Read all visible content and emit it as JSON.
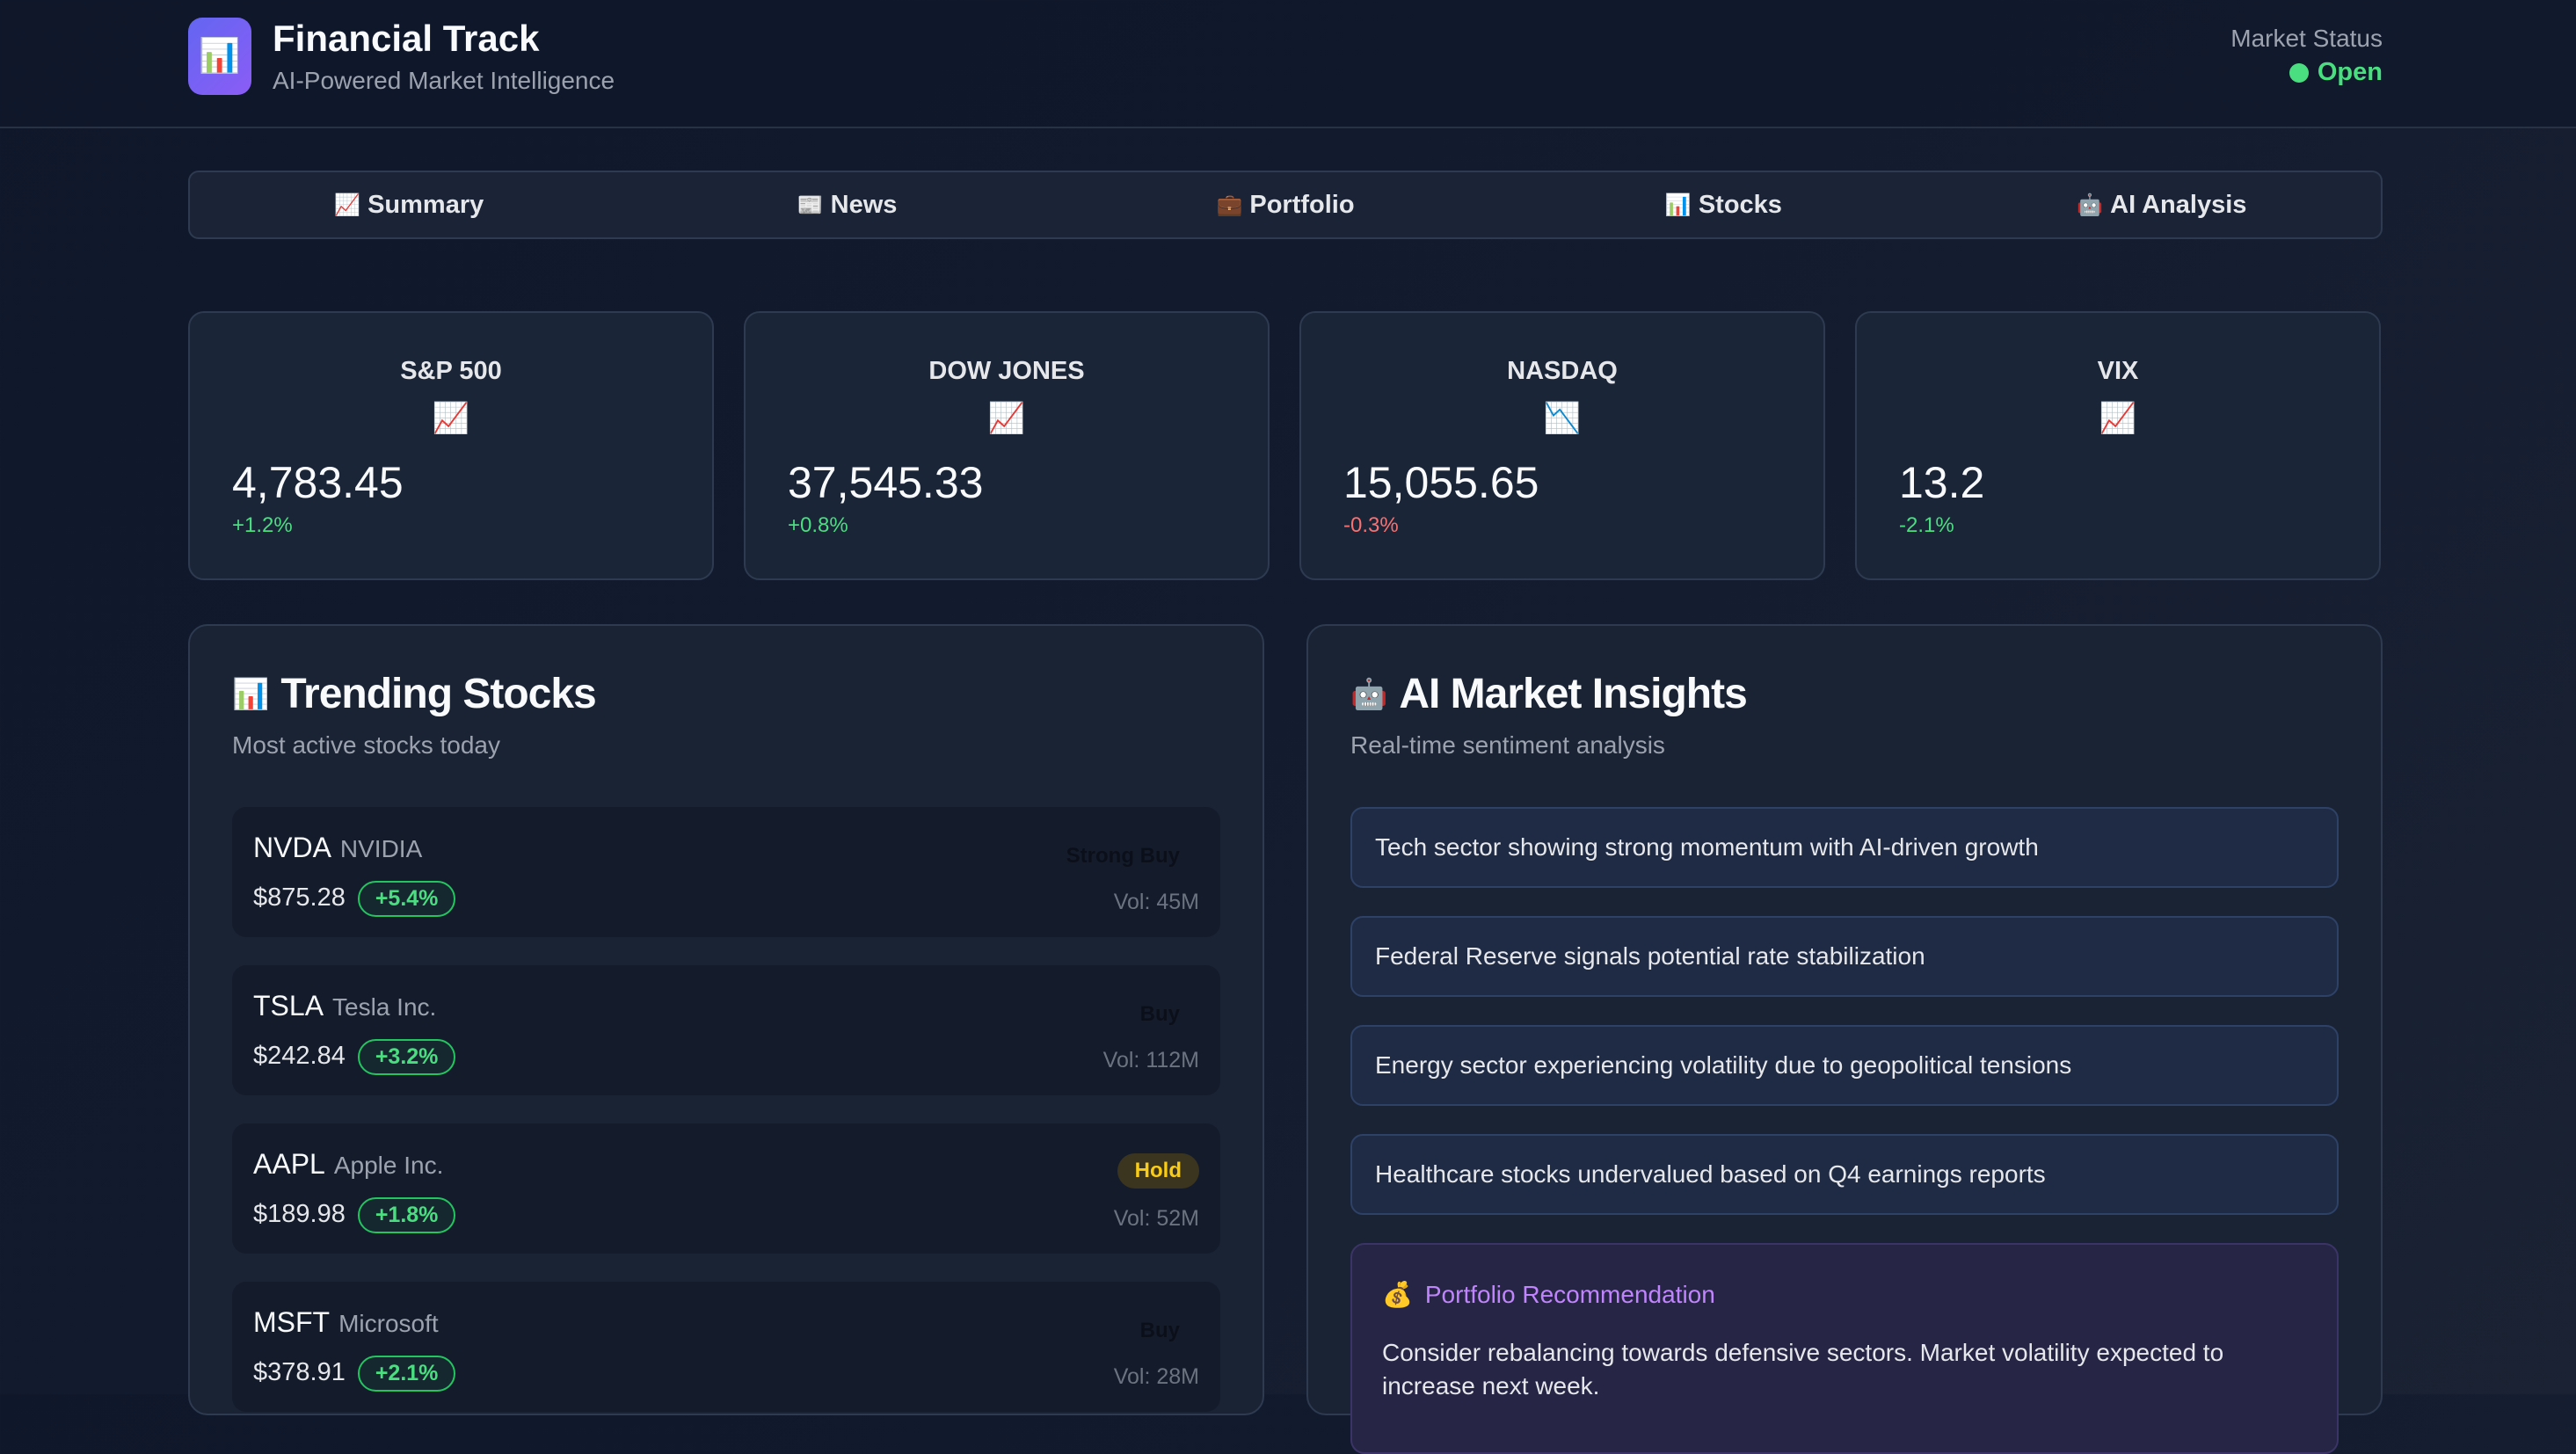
{
  "header": {
    "title": "Financial Track",
    "subtitle": "AI-Powered Market Intelligence",
    "logo_icon": "chart-icon",
    "market_status_label": "Market Status",
    "market_status_value": "Open",
    "status_color": "#4ade80"
  },
  "tabs": [
    {
      "icon": "📈",
      "label": "Summary"
    },
    {
      "icon": "📰",
      "label": "News"
    },
    {
      "icon": "💼",
      "label": "Portfolio"
    },
    {
      "icon": "📊",
      "label": "Stocks"
    },
    {
      "icon": "🤖",
      "label": "AI Analysis"
    }
  ],
  "indices": [
    {
      "name": "S&P 500",
      "trend_icon": "📈",
      "value": "4,783.45",
      "change": "+1.2%"
    },
    {
      "name": "DOW JONES",
      "trend_icon": "📈",
      "value": "37,545.33",
      "change": "+0.8%"
    },
    {
      "name": "NASDAQ",
      "trend_icon": "📉",
      "value": "15,055.65",
      "change": "-0.3%"
    },
    {
      "name": "VIX",
      "trend_icon": "📈",
      "value": "13.2",
      "change": "-2.1%"
    }
  ],
  "trending": {
    "icon": "📊",
    "title": "Trending Stocks",
    "subtitle": "Most active stocks today",
    "stocks": [
      {
        "ticker": "NVDA",
        "company": "NVIDIA",
        "price": "$875.28",
        "change": "+5.4%",
        "rating": "Strong Buy",
        "volume": "Vol: 45M"
      },
      {
        "ticker": "TSLA",
        "company": "Tesla Inc.",
        "price": "$242.84",
        "change": "+3.2%",
        "rating": "Buy",
        "volume": "Vol: 112M"
      },
      {
        "ticker": "AAPL",
        "company": "Apple Inc.",
        "price": "$189.98",
        "change": "+1.8%",
        "rating": "Hold",
        "volume": "Vol: 52M"
      },
      {
        "ticker": "MSFT",
        "company": "Microsoft",
        "price": "$378.91",
        "change": "+2.1%",
        "rating": "Buy",
        "volume": "Vol: 28M"
      }
    ]
  },
  "insights": {
    "icon": "🤖",
    "title": "AI Market Insights",
    "subtitle": "Real-time sentiment analysis",
    "items": [
      "Tech sector showing strong momentum with AI-driven growth",
      "Federal Reserve signals potential rate stabilization",
      "Energy sector experiencing volatility due to geopolitical tensions",
      "Healthcare stocks undervalued based on Q4 earnings reports"
    ],
    "recommendation": {
      "icon": "💰",
      "title": "Portfolio Recommendation",
      "text": "Consider rebalancing towards defensive sectors. Market volatility expected to increase next week."
    }
  },
  "colors": {
    "positive": "#4ade80",
    "negative": "#f87171",
    "hold": "#facc15",
    "accent": "#c084fc"
  }
}
